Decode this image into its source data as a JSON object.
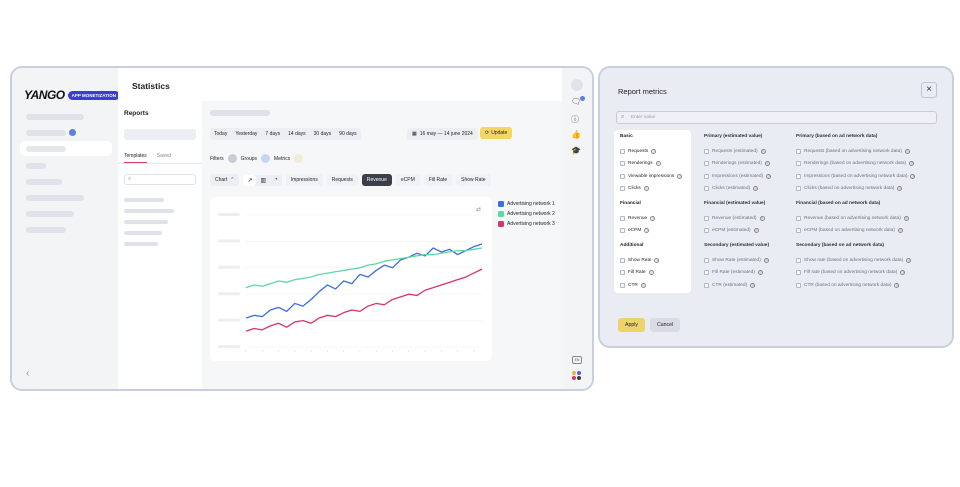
{
  "app": {
    "logo": {
      "word": "YANGO",
      "badge": "APP MONETIZATION"
    },
    "header": {
      "title": "Statistics"
    },
    "reports": {
      "title": "Reports",
      "tabs": [
        "Templates",
        "Saved"
      ]
    },
    "period": [
      "Today",
      "Yesterday",
      "7 days",
      "14 days",
      "30 days",
      "90 days"
    ],
    "date_range": "16 may — 14 june 2024",
    "update_label": "Update",
    "filters": {
      "filters": "Filters",
      "groups": "Groups",
      "metrics": "Metrics"
    },
    "chart_select": "Chart",
    "metric_tabs": [
      "Impressions",
      "Requests",
      "Revenue",
      "eCPM",
      "Fill Rate",
      "Show Rate"
    ],
    "active_metric": "Revenue",
    "lang": "EN",
    "colors": {
      "network1": "#3b6fe0",
      "network2": "#5fd6a4",
      "network3": "#d9326e",
      "accent": "#f5d565"
    }
  },
  "chart_data": {
    "type": "line",
    "x": [
      1,
      2,
      3,
      4,
      5,
      6,
      7,
      8,
      9,
      10,
      11,
      12,
      13,
      14,
      15,
      16,
      17,
      18,
      19,
      20,
      21,
      22,
      23,
      24,
      25,
      26,
      27,
      28,
      29,
      30
    ],
    "series": [
      {
        "name": "Advertising network 1",
        "color": "#3b6fe0",
        "values": [
          22,
          24,
          23,
          28,
          30,
          27,
          33,
          31,
          36,
          42,
          47,
          44,
          50,
          48,
          55,
          53,
          58,
          62,
          60,
          66,
          68,
          71,
          69,
          75,
          72,
          74,
          70,
          73,
          76,
          78
        ]
      },
      {
        "name": "Advertising network 2",
        "color": "#5fd6a4",
        "values": [
          45,
          47,
          46,
          48,
          50,
          49,
          51,
          52,
          53,
          55,
          56,
          57,
          58,
          59,
          60,
          62,
          63,
          65,
          66,
          67,
          68,
          69,
          70,
          70,
          71,
          72,
          73,
          73,
          74,
          75
        ]
      },
      {
        "name": "Advertising network 3",
        "color": "#d9326e",
        "values": [
          12,
          14,
          13,
          16,
          18,
          15,
          19,
          20,
          18,
          22,
          24,
          23,
          26,
          28,
          27,
          31,
          33,
          32,
          36,
          38,
          40,
          39,
          43,
          45,
          47,
          49,
          51,
          53,
          56,
          59
        ]
      }
    ],
    "ylim": [
      0,
      100
    ],
    "grid": true,
    "legend": "right"
  },
  "metrics_modal": {
    "title": "Report metrics",
    "search_placeholder": "Enter value",
    "columns": [
      {
        "sections": [
          {
            "head": "Basic",
            "items": [
              "Requests",
              "Renderings",
              "Viewable impressions",
              "Clicks"
            ]
          },
          {
            "head": "Financial",
            "items": [
              "Revenue",
              "eCPM"
            ]
          },
          {
            "head": "Additional",
            "items": [
              "Show Rate",
              "Fill Rate",
              "CTR"
            ]
          }
        ]
      },
      {
        "sections": [
          {
            "head": "Primary (estimated value)",
            "items": [
              "Requests (estimated)",
              "Renderings (estimated)",
              "Impressions (estimated)",
              "Clicks (estimated)"
            ]
          },
          {
            "head": "Financial (estimated value)",
            "items": [
              "Revenue (estimated)",
              "eCPM (estimated)"
            ]
          },
          {
            "head": "Secondary (estimated value)",
            "items": [
              "Show Rate (estimated)",
              "Fill Rate (estimated)",
              "CTR (estimated)"
            ]
          }
        ]
      },
      {
        "sections": [
          {
            "head": "Primary (based on ad network data)",
            "items": [
              "Requests (based on advertising network data)",
              "Renderings (based on advertising network data)",
              "Impressions (based on advertising network data)",
              "Clicks (based on advertising network data)"
            ]
          },
          {
            "head": "Financial (based on ad network data)",
            "items": [
              "Revenue (based on advertising network data)",
              "eCPM (based on advertising network data)"
            ]
          },
          {
            "head": "Secondary (based on ad network data)",
            "items": [
              "Show rate (based on advertising network data)",
              "Fill rate (based on advertising network data)",
              "CTR (based on advertising network data)"
            ]
          }
        ]
      }
    ],
    "apply_label": "Apply",
    "cancel_label": "Cancel"
  }
}
